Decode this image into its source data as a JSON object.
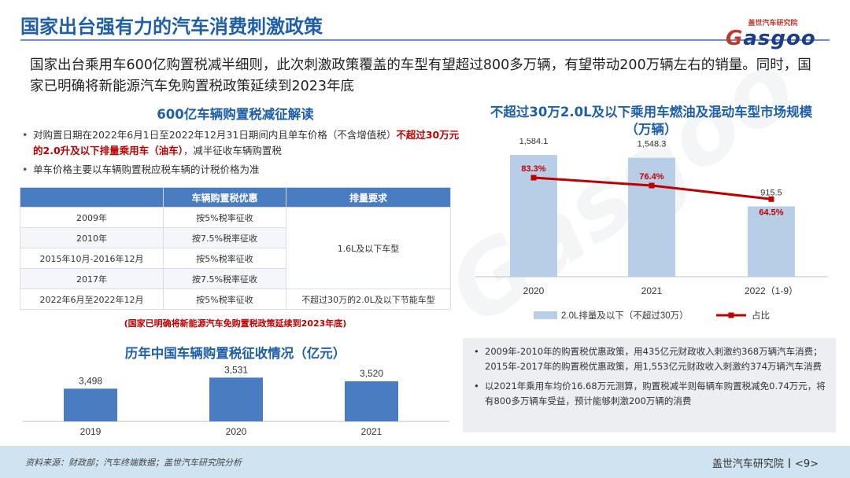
{
  "title": "国家出台强有力的汽车消费刺激政策",
  "logo": {
    "tagline": "盖世汽车研究院",
    "word_pre": "G",
    "word_rest": "asgoo"
  },
  "intro": "国家出台乘用车600亿购置税减半细则，此次刺激政策覆盖的车型有望超过800多万辆，有望带动200万辆左右的销量。同时，国家已明确将新能源汽车免购置税政策延续到2023年底",
  "left": {
    "section_title": "600亿车辆购置税减征解读",
    "bullet1_a": "对购置日期在2022年6月1日至2022年12月31日期间内且单车价格（不含增值税）",
    "bullet1_red": "不超过30万元的2.0升及以下排量乘用车（油车）",
    "bullet1_b": "，减半征收车辆购置税",
    "bullet2": "单车价格主要以车辆购置税应税车辆的计税价格为准",
    "table": {
      "headers": [
        "",
        "车辆购置税优惠",
        "排量要求"
      ],
      "rows": [
        [
          "2009年",
          "按5%税率征收"
        ],
        [
          "2010年",
          "按7.5%税率征收"
        ],
        [
          "2015年10月-2016年12月",
          "按5%税率征收"
        ],
        [
          "2017年",
          "按7.5%税率征收"
        ],
        [
          "2022年6月至2022年12月",
          "按5%税率征收",
          "不超过30万的2.0L及以下节能车型"
        ]
      ],
      "merged_requirement": "1.6L及以下车型"
    },
    "note": "(国家已明确将新能源汽车免购置税政策延续到2023年底)"
  },
  "bottom_chart_title": "历年中国车辆购置税征收情况（亿元）",
  "right": {
    "chart_title_line1": "不超过30万2.0L及以下乘用车燃油及混动车型市场规模",
    "chart_title_line2": "（万辆）",
    "bullet1": "2009年-2010年的购置税优惠政策，用435亿元财政收入刺激约368万辆汽车消费；2015年-2017年的购置税优惠政策，用1,553亿元财政收入刺激约374万辆汽车消费",
    "bullet2": "以2021年乘用车均价16.68万元测算，购置税减半则每辆车购置税减免0.74万元，将有800多万辆车受益，预计能够刺激200万辆的消费"
  },
  "footer": {
    "source": "资料来源：财政部；汽车终端数据；盖世汽车研究院分析",
    "brand": "盖世汽车研究院",
    "page": "<9>"
  },
  "colors": {
    "accent": "#1f5fa8",
    "bar": "#4a7cc2",
    "bar_light": "#b8cde6",
    "line": "#c00000"
  },
  "chart_data": [
    {
      "type": "bar",
      "title": "历年中国车辆购置税征收情况（亿元）",
      "categories": [
        "2019",
        "2020",
        "2021"
      ],
      "values": [
        3498,
        3531,
        3520
      ],
      "value_labels": [
        "3,498",
        "3,531",
        "3,520"
      ],
      "ylim": [
        3400,
        3560
      ]
    },
    {
      "type": "bar",
      "title": "不超过30万2.0L及以下乘用车燃油及混动车型市场规模（万辆）",
      "categories": [
        "2020",
        "2021",
        "2022（1-9）"
      ],
      "series": [
        {
          "name": "2.0L排量及以下（不超过30万）",
          "type": "bar",
          "values": [
            1584.1,
            1548.3,
            915.5
          ],
          "labels": [
            "1,584.1",
            "1,548.3",
            "915.5"
          ]
        },
        {
          "name": "占比",
          "type": "line",
          "values": [
            83.3,
            76.4,
            64.5
          ],
          "labels": [
            "83.3%",
            "76.4%",
            "64.5%"
          ]
        }
      ],
      "legend_position": "bottom"
    }
  ]
}
